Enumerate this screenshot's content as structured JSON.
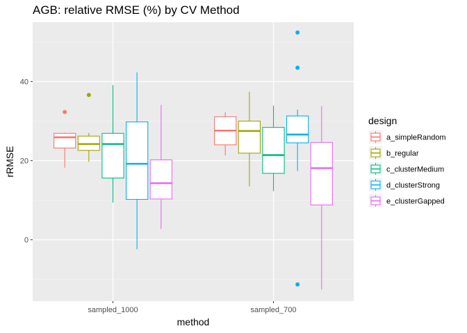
{
  "chart_data": {
    "type": "boxplot",
    "title": "AGB: relative RMSE (%) by CV Method",
    "xlabel": "method",
    "ylabel": "rRMSE",
    "categories": [
      "sampled_1000",
      "sampled_700"
    ],
    "ylim": [
      -15.5,
      55
    ],
    "yticks": [
      0,
      20,
      40
    ],
    "grid": true,
    "legend": {
      "title": "design",
      "position": "right",
      "entries": [
        "a_simpleRandom",
        "b_regular",
        "c_clusterMedium",
        "d_clusterStrong",
        "e_clusterGapped"
      ]
    },
    "series": [
      {
        "name": "a_simpleRandom",
        "color": "#F8766D",
        "boxes": [
          {
            "category": "sampled_1000",
            "whisker_low": 18.2,
            "q1": 23.2,
            "median": 25.9,
            "q3": 26.9,
            "whisker_high": 27.1,
            "outliers": [
              32.3
            ]
          },
          {
            "category": "sampled_700",
            "whisker_low": 21.3,
            "q1": 24.0,
            "median": 27.6,
            "q3": 31.1,
            "whisker_high": 32.2,
            "outliers": []
          }
        ]
      },
      {
        "name": "b_regular",
        "color": "#A3A500",
        "boxes": [
          {
            "category": "sampled_1000",
            "whisker_low": 19.7,
            "q1": 22.6,
            "median": 24.2,
            "q3": 26.2,
            "whisker_high": 27.0,
            "outliers": [
              36.6
            ]
          },
          {
            "category": "sampled_700",
            "whisker_low": 13.5,
            "q1": 21.9,
            "median": 27.5,
            "q3": 30.0,
            "whisker_high": 37.4,
            "outliers": []
          }
        ]
      },
      {
        "name": "c_clusterMedium",
        "color": "#00BF7D",
        "boxes": [
          {
            "category": "sampled_1000",
            "whisker_low": 9.4,
            "q1": 15.6,
            "median": 24.2,
            "q3": 26.9,
            "whisker_high": 39.1,
            "outliers": []
          },
          {
            "category": "sampled_700",
            "whisker_low": 12.3,
            "q1": 16.8,
            "median": 21.4,
            "q3": 28.4,
            "whisker_high": 33.9,
            "outliers": []
          }
        ]
      },
      {
        "name": "d_clusterStrong",
        "color": "#00B0F6",
        "boxes": [
          {
            "category": "sampled_1000",
            "whisker_low": -2.4,
            "q1": 10.2,
            "median": 19.2,
            "q3": 29.8,
            "whisker_high": 42.3,
            "outliers": []
          },
          {
            "category": "sampled_700",
            "whisker_low": 17.4,
            "q1": 24.5,
            "median": 26.6,
            "q3": 31.3,
            "whisker_high": 32.9,
            "outliers": [
              52.4,
              43.5,
              -11.3
            ]
          }
        ]
      },
      {
        "name": "e_clusterGapped",
        "color": "#E76BF3",
        "boxes": [
          {
            "category": "sampled_1000",
            "whisker_low": 2.7,
            "q1": 10.3,
            "median": 14.3,
            "q3": 20.2,
            "whisker_high": 34.1,
            "outliers": []
          },
          {
            "category": "sampled_700",
            "whisker_low": -12.6,
            "q1": 8.8,
            "median": 18.1,
            "q3": 24.6,
            "whisker_high": 33.8,
            "outliers": []
          }
        ]
      }
    ]
  }
}
